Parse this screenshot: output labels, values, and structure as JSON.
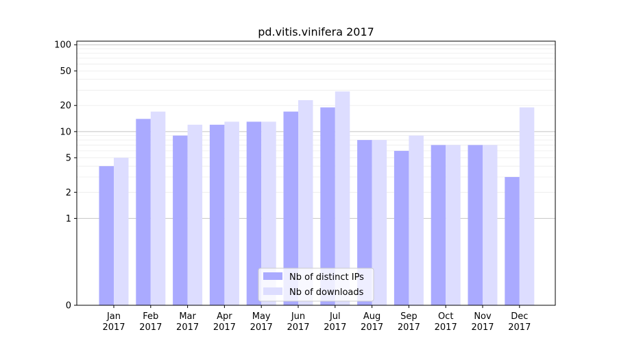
{
  "chart_data": {
    "type": "bar",
    "title": "pd.vitis.vinifera 2017",
    "xlabel": "",
    "ylabel": "",
    "y_scale": "symlog",
    "ylim": [
      0,
      110
    ],
    "y_ticks": [
      0,
      1,
      2,
      5,
      10,
      20,
      50,
      100
    ],
    "y_tick_labels": [
      "0",
      "1",
      "2",
      "5",
      "10",
      "20",
      "50",
      "100"
    ],
    "grid": true,
    "legend_position": "bottom-center",
    "categories": [
      {
        "month": "Jan",
        "year": "2017"
      },
      {
        "month": "Feb",
        "year": "2017"
      },
      {
        "month": "Mar",
        "year": "2017"
      },
      {
        "month": "Apr",
        "year": "2017"
      },
      {
        "month": "May",
        "year": "2017"
      },
      {
        "month": "Jun",
        "year": "2017"
      },
      {
        "month": "Jul",
        "year": "2017"
      },
      {
        "month": "Aug",
        "year": "2017"
      },
      {
        "month": "Sep",
        "year": "2017"
      },
      {
        "month": "Oct",
        "year": "2017"
      },
      {
        "month": "Nov",
        "year": "2017"
      },
      {
        "month": "Dec",
        "year": "2017"
      }
    ],
    "series": [
      {
        "name": "Nb of distinct IPs",
        "color": "#aaaaff",
        "values": [
          4,
          14,
          9,
          12,
          13,
          17,
          19,
          8,
          6,
          7,
          7,
          3
        ]
      },
      {
        "name": "Nb of downloads",
        "color": "#ddddff",
        "values": [
          5,
          17,
          12,
          13,
          13,
          23,
          29,
          8,
          9,
          7,
          7,
          19
        ]
      }
    ]
  }
}
